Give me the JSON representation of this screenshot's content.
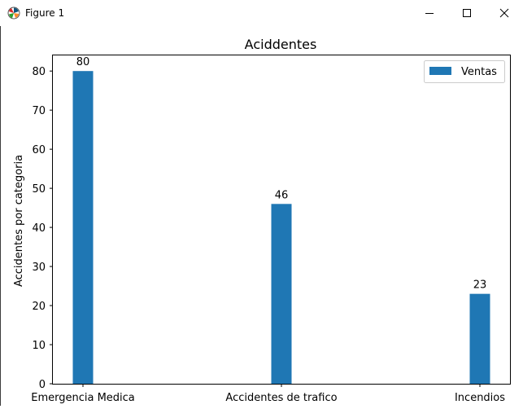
{
  "window": {
    "title": "Figure 1",
    "controls": [
      "minimize",
      "maximize",
      "close"
    ]
  },
  "chart_data": {
    "type": "bar",
    "title": "Aciddentes",
    "xlabel": "",
    "ylabel": "Accidentes por categoria",
    "categories": [
      "Emergencia Medica",
      "Accidentes de trafico",
      "Incendios"
    ],
    "series": [
      {
        "name": "Ventas",
        "values": [
          80,
          46,
          23
        ],
        "color": "#1f77b4"
      }
    ],
    "data_labels": [
      "80",
      "46",
      "23"
    ],
    "ylim": [
      0,
      84
    ],
    "yticks": [
      0,
      10,
      20,
      30,
      40,
      50,
      60,
      70,
      80
    ],
    "grid": false,
    "legend_position": "top-right"
  }
}
